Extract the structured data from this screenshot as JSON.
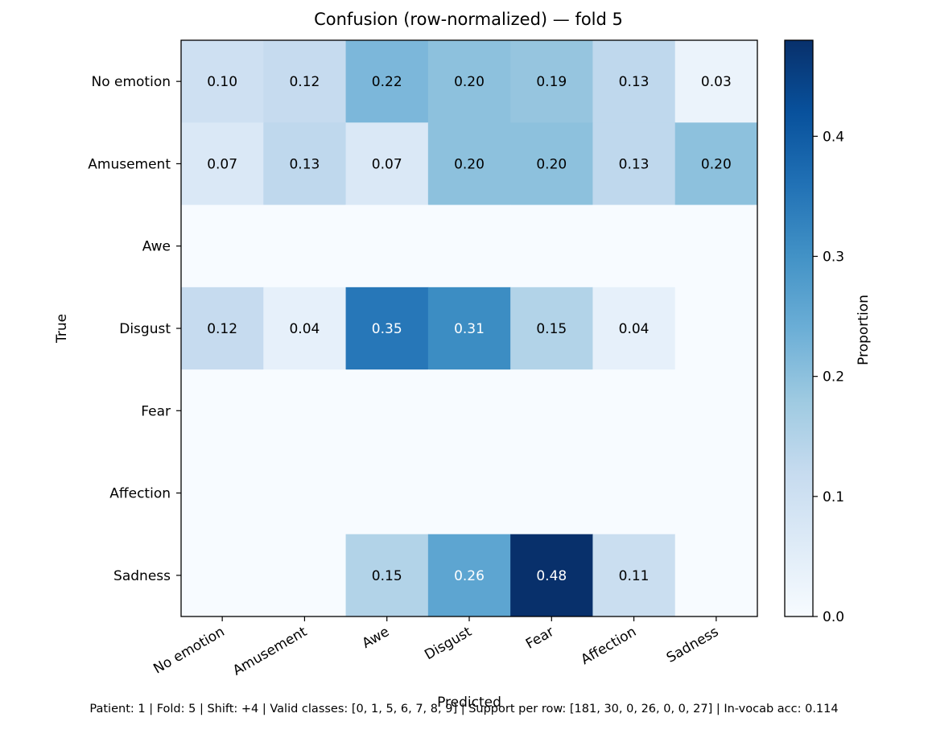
{
  "chart_data": {
    "type": "heatmap",
    "title": "Confusion (row-normalized) — fold 5",
    "xlabel": "Predicted",
    "ylabel": "True",
    "x_categories": [
      "No emotion",
      "Amusement",
      "Awe",
      "Disgust",
      "Fear",
      "Affection",
      "Sadness"
    ],
    "y_categories": [
      "No emotion",
      "Amusement",
      "Awe",
      "Disgust",
      "Fear",
      "Affection",
      "Sadness"
    ],
    "values": [
      [
        0.1,
        0.12,
        0.22,
        0.2,
        0.19,
        0.13,
        0.03
      ],
      [
        0.07,
        0.13,
        0.07,
        0.2,
        0.2,
        0.13,
        0.2
      ],
      [
        0.0,
        0.0,
        0.0,
        0.0,
        0.0,
        0.0,
        0.0
      ],
      [
        0.12,
        0.04,
        0.35,
        0.31,
        0.15,
        0.04,
        0.0
      ],
      [
        0.0,
        0.0,
        0.0,
        0.0,
        0.0,
        0.0,
        0.0
      ],
      [
        0.0,
        0.0,
        0.0,
        0.0,
        0.0,
        0.0,
        0.0
      ],
      [
        0.0,
        0.0,
        0.15,
        0.26,
        0.48,
        0.11,
        0.0
      ]
    ],
    "colormap": "Blues",
    "value_range": [
      0.0,
      0.48
    ],
    "colorbar": {
      "label": "Proportion",
      "ticks": [
        0.0,
        0.1,
        0.2,
        0.3,
        0.4
      ],
      "tick_labels": [
        "0.0",
        "0.1",
        "0.2",
        "0.3",
        "0.4"
      ]
    },
    "annotation_format": "two decimals, zero cells unlabeled",
    "footer": "Patient: 1 | Fold: 5 | Shift: +4 | Valid classes: [0, 1, 5, 6, 7, 8, 9] | Support per row: [181, 30, 0, 26, 0, 0, 27] | In-vocab acc: 0.114"
  }
}
